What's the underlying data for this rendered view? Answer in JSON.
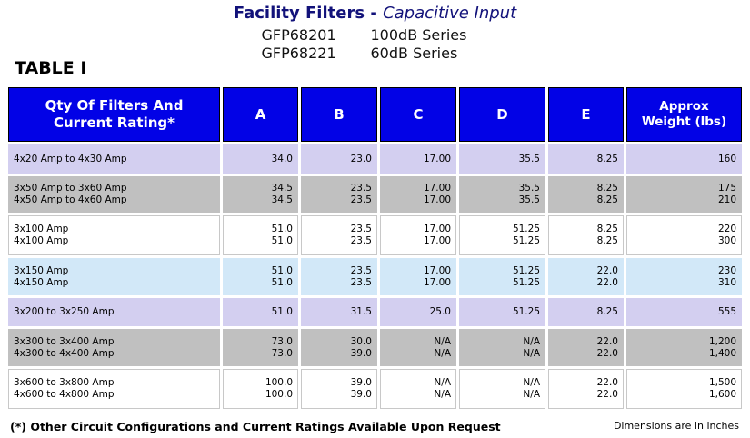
{
  "header": {
    "title_main": "Facility Filters",
    "title_dash": " - ",
    "title_sub": "Capacitive Input",
    "models": [
      {
        "model": "GFP68201",
        "series": "100dB Series"
      },
      {
        "model": "GFP68221",
        "series": "60dB Series"
      }
    ]
  },
  "table_title": "TABLE I",
  "columns": [
    "Qty Of Filters And Current Rating*",
    "A",
    "B",
    "C",
    "D",
    "E",
    "Approx Weight (lbs)"
  ],
  "rows": [
    {
      "desc": [
        "4x20 Amp to 4x30 Amp"
      ],
      "A": [
        "34.0"
      ],
      "B": [
        "23.0"
      ],
      "C": [
        "17.00"
      ],
      "D": [
        "35.5"
      ],
      "E": [
        "8.25"
      ],
      "W": [
        "160"
      ]
    },
    {
      "desc": [
        "3x50 Amp to 3x60 Amp",
        "4x50 Amp to 4x60 Amp"
      ],
      "A": [
        "34.5",
        "34.5"
      ],
      "B": [
        "23.5",
        "23.5"
      ],
      "C": [
        "17.00",
        "17.00"
      ],
      "D": [
        "35.5",
        "35.5"
      ],
      "E": [
        "8.25",
        "8.25"
      ],
      "W": [
        "175",
        "210"
      ]
    },
    {
      "desc": [
        "3x100 Amp",
        "4x100 Amp"
      ],
      "A": [
        "51.0",
        "51.0"
      ],
      "B": [
        "23.5",
        "23.5"
      ],
      "C": [
        "17.00",
        "17.00"
      ],
      "D": [
        "51.25",
        "51.25"
      ],
      "E": [
        "8.25",
        "8.25"
      ],
      "W": [
        "220",
        "300"
      ]
    },
    {
      "desc": [
        "3x150 Amp",
        "4x150 Amp"
      ],
      "A": [
        "51.0",
        "51.0"
      ],
      "B": [
        "23.5",
        "23.5"
      ],
      "C": [
        "17.00",
        "17.00"
      ],
      "D": [
        "51.25",
        "51.25"
      ],
      "E": [
        "22.0",
        "22.0"
      ],
      "W": [
        "230",
        "310"
      ]
    },
    {
      "desc": [
        "3x200 to 3x250 Amp"
      ],
      "A": [
        "51.0"
      ],
      "B": [
        "31.5"
      ],
      "C": [
        "25.0"
      ],
      "D": [
        "51.25"
      ],
      "E": [
        "8.25"
      ],
      "W": [
        "555"
      ]
    },
    {
      "desc": [
        "3x300 to 3x400 Amp",
        "4x300 to 4x400 Amp"
      ],
      "A": [
        "73.0",
        "73.0"
      ],
      "B": [
        "30.0",
        "39.0"
      ],
      "C": [
        "N/A",
        "N/A"
      ],
      "D": [
        "N/A",
        "N/A"
      ],
      "E": [
        "22.0",
        "22.0"
      ],
      "W": [
        "1,200",
        "1,400"
      ]
    },
    {
      "desc": [
        "3x600 to 3x800 Amp",
        "4x600 to 4x800 Amp"
      ],
      "A": [
        "100.0",
        "100.0"
      ],
      "B": [
        "39.0",
        "39.0"
      ],
      "C": [
        "N/A",
        "N/A"
      ],
      "D": [
        "N/A",
        "N/A"
      ],
      "E": [
        "22.0",
        "22.0"
      ],
      "W": [
        "1,500",
        "1,600"
      ]
    }
  ],
  "row_styles": [
    "purple",
    "gray",
    "white",
    "blue",
    "purple",
    "gray",
    "white"
  ],
  "footer": {
    "note": "(*) Other Circuit Configurations and Current Ratings Available Upon Request",
    "units": "Dimensions are in inches"
  }
}
